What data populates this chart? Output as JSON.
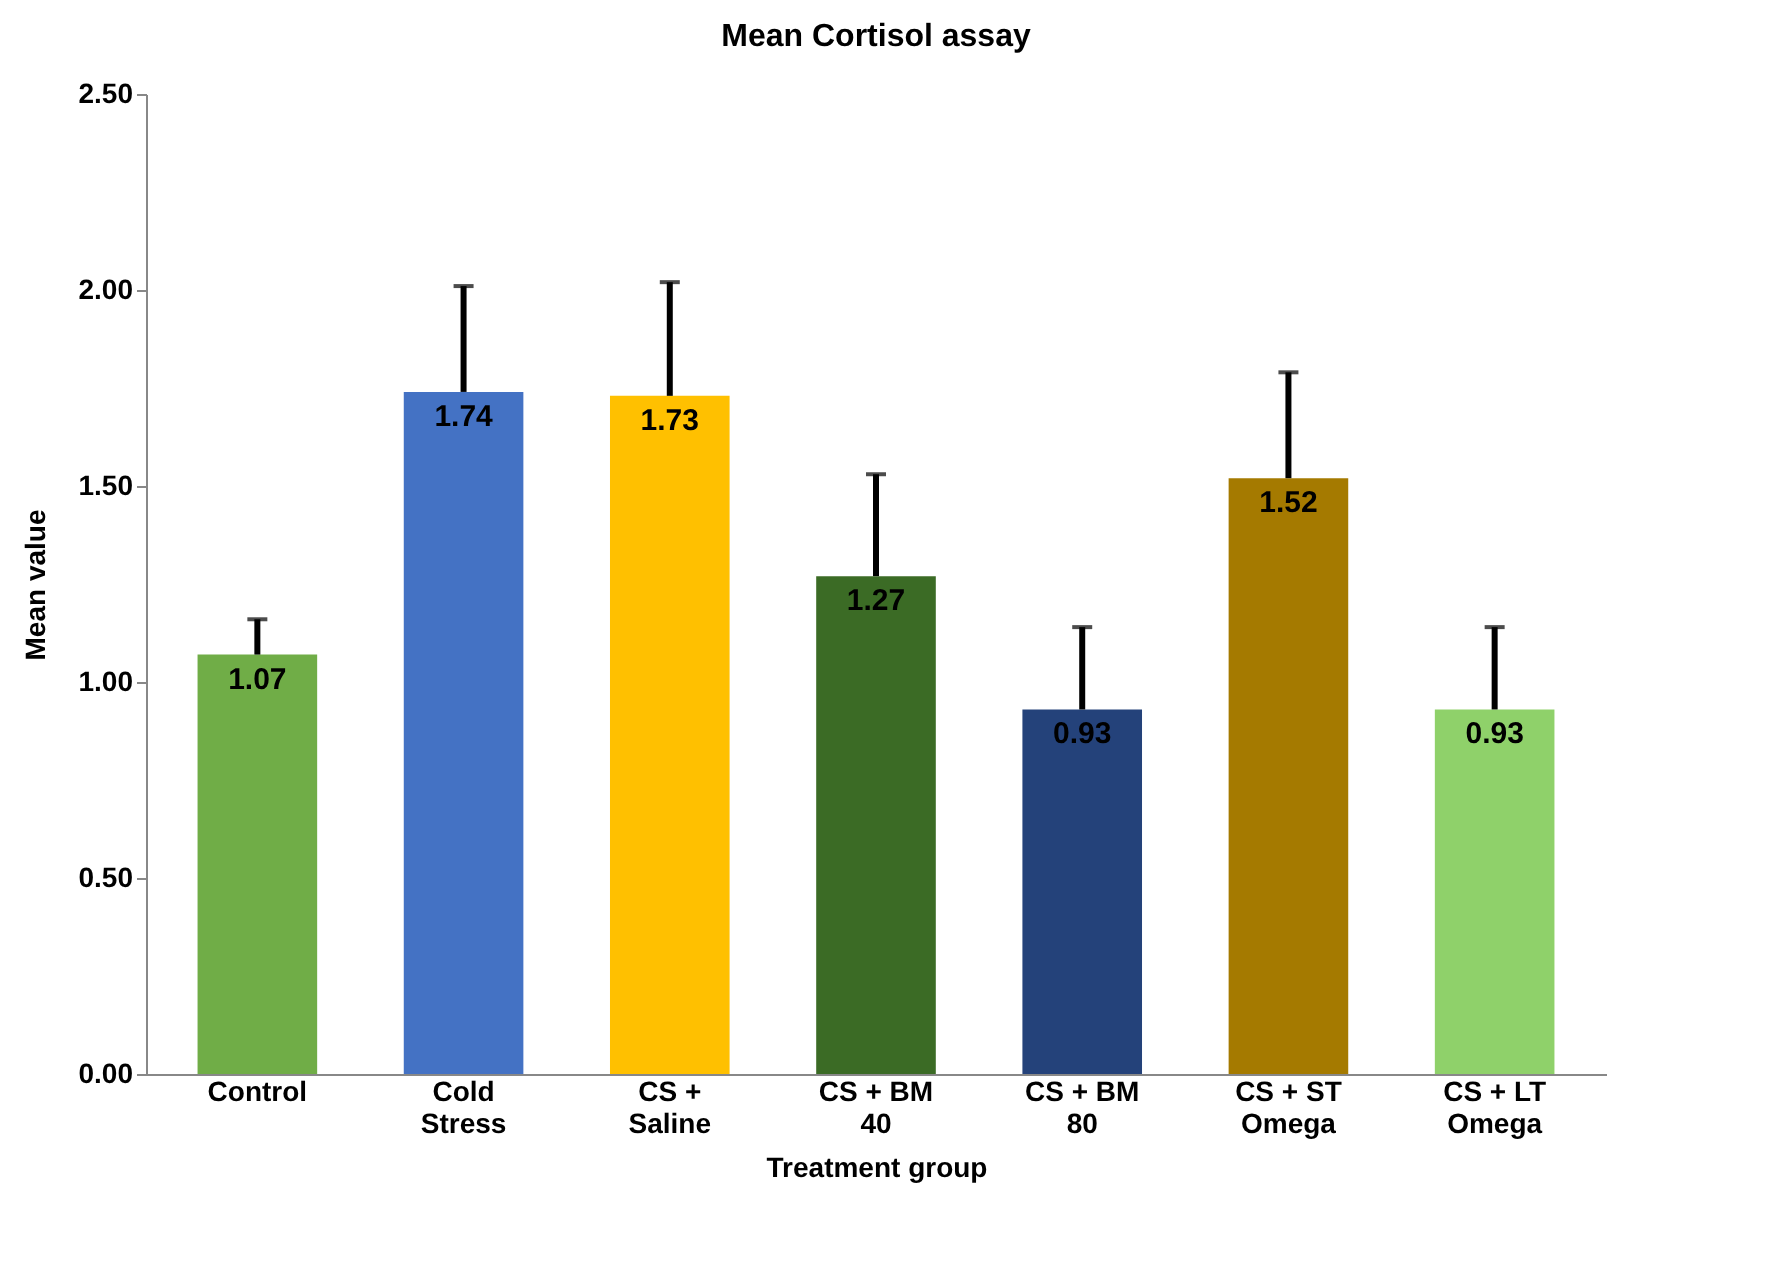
{
  "chart_data": {
    "type": "bar",
    "title": "Mean Cortisol assay",
    "xlabel": "Treatment group",
    "ylabel": "Mean value",
    "categories": [
      "Control",
      "Cold Stress",
      "CS + Saline",
      "CS + BM 40",
      "CS + BM 80",
      "CS + ST Omega",
      "CS + LT Omega"
    ],
    "values": [
      1.07,
      1.74,
      1.73,
      1.27,
      0.93,
      1.52,
      0.93
    ],
    "colors": [
      "#70ad47",
      "#4472c4",
      "#ffc000",
      "#3b6b25",
      "#24427a",
      "#a57a00",
      "#8fd16a"
    ],
    "errors": [
      [
        1.07,
        1.16
      ],
      [
        1.74,
        2.01
      ],
      [
        1.73,
        2.02
      ],
      [
        1.27,
        1.53
      ],
      [
        0.93,
        1.14
      ],
      [
        1.52,
        1.79
      ],
      [
        0.93,
        1.14
      ]
    ],
    "data_labels": true,
    "ylim": [
      0,
      2.5
    ],
    "yticks": [
      {
        "value": 0,
        "label": "0.00"
      },
      {
        "value": 0.5,
        "label": "0.50"
      },
      {
        "value": 1,
        "label": "1.00"
      },
      {
        "value": 1.5,
        "label": "1.50"
      },
      {
        "value": 2,
        "label": "2.00"
      },
      {
        "value": 2.5,
        "label": "2.50"
      }
    ],
    "grid": false,
    "legend": false
  }
}
